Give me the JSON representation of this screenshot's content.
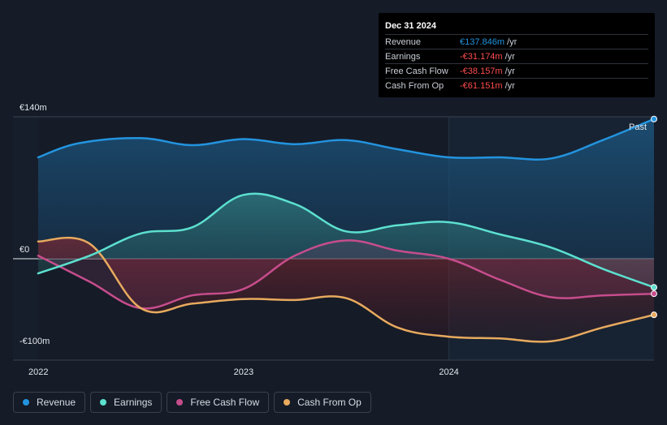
{
  "chart_data": {
    "type": "area",
    "title": "",
    "x_ticks": [
      "2022",
      "2023",
      "2024"
    ],
    "y_labels": [
      {
        "label": "€140m",
        "value": 140
      },
      {
        "label": "€0",
        "value": 0
      },
      {
        "label": "-€100m",
        "value": -100
      }
    ],
    "ylim": [
      -100,
      140
    ],
    "xlim": [
      2022.0,
      2025.0
    ],
    "past_label": "Past",
    "series": [
      {
        "name": "Revenue",
        "color": "#2394df",
        "points": [
          [
            2022.0,
            100
          ],
          [
            2022.2,
            114
          ],
          [
            2022.5,
            119
          ],
          [
            2022.75,
            112
          ],
          [
            2023.0,
            118
          ],
          [
            2023.25,
            113
          ],
          [
            2023.5,
            117
          ],
          [
            2023.75,
            108
          ],
          [
            2024.0,
            100
          ],
          [
            2024.25,
            100
          ],
          [
            2024.5,
            99
          ],
          [
            2024.75,
            117
          ],
          [
            2025.0,
            137.8
          ]
        ]
      },
      {
        "name": "Earnings",
        "color": "#5ce0cf",
        "points": [
          [
            2022.0,
            -16
          ],
          [
            2022.25,
            3
          ],
          [
            2022.5,
            25
          ],
          [
            2022.75,
            31
          ],
          [
            2023.0,
            63
          ],
          [
            2023.25,
            54
          ],
          [
            2023.5,
            27
          ],
          [
            2023.75,
            33
          ],
          [
            2024.0,
            36
          ],
          [
            2024.25,
            24
          ],
          [
            2024.5,
            11
          ],
          [
            2024.75,
            -11
          ],
          [
            2025.0,
            -31.2
          ]
        ]
      },
      {
        "name": "Free Cash Flow",
        "color": "#c64d8c",
        "points": [
          [
            2022.0,
            3
          ],
          [
            2022.25,
            -25
          ],
          [
            2022.5,
            -54
          ],
          [
            2022.75,
            -40
          ],
          [
            2023.0,
            -33
          ],
          [
            2023.25,
            3
          ],
          [
            2023.5,
            18
          ],
          [
            2023.75,
            8
          ],
          [
            2024.0,
            0
          ],
          [
            2024.25,
            -23
          ],
          [
            2024.5,
            -42
          ],
          [
            2024.75,
            -40
          ],
          [
            2025.0,
            -38.2
          ]
        ]
      },
      {
        "name": "Cash From Op",
        "color": "#e8aa5e",
        "points": [
          [
            2022.0,
            17
          ],
          [
            2022.25,
            15
          ],
          [
            2022.5,
            -54
          ],
          [
            2022.75,
            -49
          ],
          [
            2023.0,
            -44
          ],
          [
            2023.25,
            -45
          ],
          [
            2023.5,
            -43
          ],
          [
            2023.75,
            -75
          ],
          [
            2024.0,
            -85
          ],
          [
            2024.25,
            -87
          ],
          [
            2024.5,
            -90
          ],
          [
            2024.75,
            -75
          ],
          [
            2025.0,
            -61.2
          ]
        ]
      }
    ]
  },
  "tooltip": {
    "date": "Dec 31 2024",
    "rows": [
      {
        "label": "Revenue",
        "value": "€137.846m",
        "unit": "/yr",
        "color": "#2394df"
      },
      {
        "label": "Earnings",
        "value": "-€31.174m",
        "unit": "/yr",
        "color": "#ff4d4f"
      },
      {
        "label": "Free Cash Flow",
        "value": "-€38.157m",
        "unit": "/yr",
        "color": "#ff4d4f"
      },
      {
        "label": "Cash From Op",
        "value": "-€61.151m",
        "unit": "/yr",
        "color": "#ff4d4f"
      }
    ]
  },
  "legend": [
    {
      "label": "Revenue",
      "color": "#2394df"
    },
    {
      "label": "Earnings",
      "color": "#5ce0cf"
    },
    {
      "label": "Free Cash Flow",
      "color": "#c64d8c"
    },
    {
      "label": "Cash From Op",
      "color": "#e8aa5e"
    }
  ]
}
